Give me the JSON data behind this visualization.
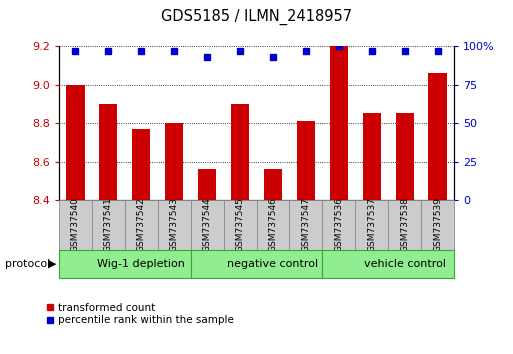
{
  "title": "GDS5185 / ILMN_2418957",
  "samples": [
    "GSM737540",
    "GSM737541",
    "GSM737542",
    "GSM737543",
    "GSM737544",
    "GSM737545",
    "GSM737546",
    "GSM737547",
    "GSM737536",
    "GSM737537",
    "GSM737538",
    "GSM737539"
  ],
  "bar_values": [
    9.0,
    8.9,
    8.77,
    8.8,
    8.56,
    8.9,
    8.56,
    8.81,
    9.2,
    8.85,
    8.85,
    9.06
  ],
  "percentile_values": [
    97,
    97,
    97,
    97,
    93,
    97,
    93,
    97,
    100,
    97,
    97,
    97
  ],
  "bar_color": "#cc0000",
  "percentile_color": "#0000cc",
  "ylim_left": [
    8.4,
    9.2
  ],
  "ylim_right": [
    0,
    100
  ],
  "yticks_left": [
    8.4,
    8.6,
    8.8,
    9.0,
    9.2
  ],
  "yticks_right": [
    0,
    25,
    50,
    75,
    100
  ],
  "yright_labels": [
    "0",
    "25",
    "50",
    "75",
    "100%"
  ],
  "groups": [
    {
      "label": "Wig-1 depletion",
      "start": 0,
      "end": 4
    },
    {
      "label": "negative control",
      "start": 4,
      "end": 8
    },
    {
      "label": "vehicle control",
      "start": 8,
      "end": 12
    }
  ],
  "group_color": "#90ee90",
  "group_edge_color": "#33aa33",
  "sample_box_color": "#cccccc",
  "sample_box_edge": "#888888",
  "legend_items": [
    {
      "label": "transformed count",
      "color": "#cc0000"
    },
    {
      "label": "percentile rank within the sample",
      "color": "#0000cc"
    }
  ],
  "protocol_label": "protocol"
}
